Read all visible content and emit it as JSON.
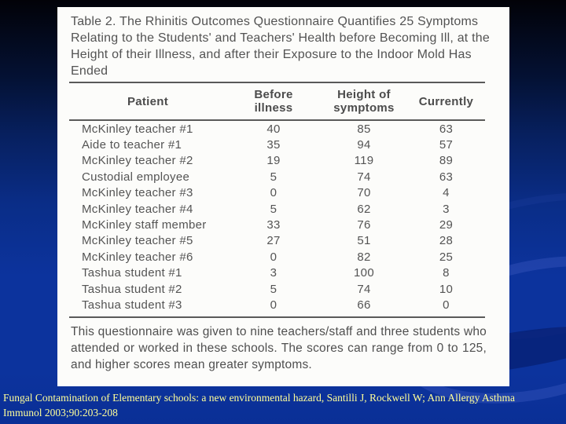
{
  "slide": {
    "background_top_color": "#020208",
    "background_bottom_color": "#0c339d",
    "citation_color": "#ffff99",
    "citation": {
      "line1": "Fungal Contamination of Elementary schools: a new environmental hazard, Santilli J, Rockwell W; Ann Allergy Asthma",
      "line2": "Immunol 2003;90:203-208"
    }
  },
  "table_image": {
    "title": "Table 2. The Rhinitis Outcomes Questionnaire Quantifies 25 Symptoms Relating to the Students' and Teachers' Health before Becoming Ill, at the Height of their Illness, and after their Exposure to the Indoor Mold Has Ended",
    "columns": [
      "Patient",
      "Before illness",
      "Height of symptoms",
      "Currently"
    ],
    "rows": [
      {
        "patient": "McKinley teacher #1",
        "before": "40",
        "height": "85",
        "currently": "63"
      },
      {
        "patient": "Aide to teacher #1",
        "before": "35",
        "height": "94",
        "currently": "57"
      },
      {
        "patient": "McKinley teacher #2",
        "before": "19",
        "height": "119",
        "currently": "89"
      },
      {
        "patient": "Custodial employee",
        "before": "5",
        "height": "74",
        "currently": "63"
      },
      {
        "patient": "McKinley teacher #3",
        "before": "0",
        "height": "70",
        "currently": "4"
      },
      {
        "patient": "McKinley teacher #4",
        "before": "5",
        "height": "62",
        "currently": "3"
      },
      {
        "patient": "McKinley staff member",
        "before": "33",
        "height": "76",
        "currently": "29"
      },
      {
        "patient": "McKinley teacher #5",
        "before": "27",
        "height": "51",
        "currently": "28"
      },
      {
        "patient": "McKinley teacher #6",
        "before": "0",
        "height": "82",
        "currently": "25"
      },
      {
        "patient": "Tashua student #1",
        "before": "3",
        "height": "100",
        "currently": "8"
      },
      {
        "patient": "Tashua student #2",
        "before": "5",
        "height": "74",
        "currently": "10"
      },
      {
        "patient": "Tashua student #3",
        "before": "0",
        "height": "66",
        "currently": "0"
      }
    ],
    "footnote": "This questionnaire was given to nine teachers/staff and three students who attended or worked in these schools. The scores can range from 0 to 125, and higher scores mean greater symptoms."
  }
}
